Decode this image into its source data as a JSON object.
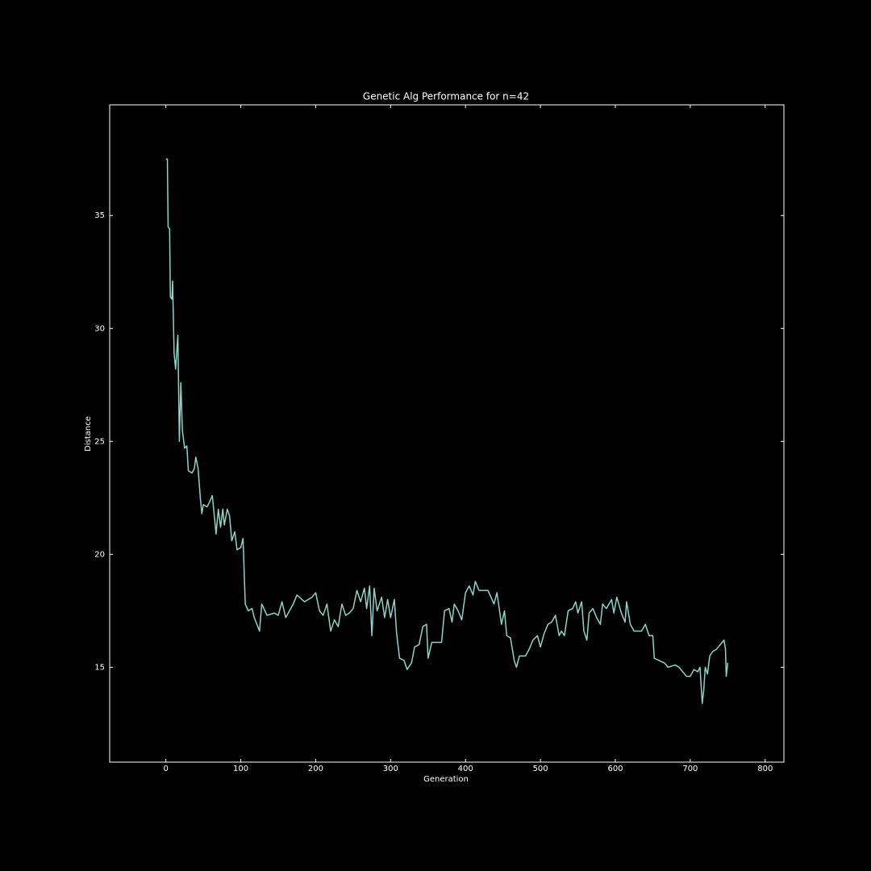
{
  "chart_data": {
    "type": "line",
    "title": "Genetic Alg Performance for n=42",
    "x_label": "Generation",
    "y_label": "Distance",
    "color": "#8dd3c7",
    "x": [
      0,
      2,
      3,
      5,
      6,
      8,
      9,
      11,
      13,
      16,
      18,
      20,
      22,
      25,
      28,
      30,
      35,
      38,
      40,
      43,
      46,
      48,
      50,
      55,
      58,
      62,
      65,
      67,
      70,
      73,
      76,
      78,
      82,
      85,
      88,
      92,
      95,
      100,
      103,
      106,
      110,
      115,
      118,
      125,
      128,
      135,
      145,
      150,
      155,
      160,
      170,
      175,
      185,
      195,
      200,
      205,
      210,
      215,
      220,
      225,
      230,
      235,
      240,
      245,
      250,
      255,
      260,
      265,
      268,
      272,
      275,
      278,
      282,
      288,
      292,
      296,
      300,
      305,
      308,
      312,
      318,
      322,
      328,
      332,
      338,
      343,
      348,
      350,
      355,
      368,
      372,
      378,
      382,
      385,
      390,
      395,
      400,
      405,
      410,
      413,
      418,
      430,
      438,
      442,
      448,
      452,
      455,
      460,
      465,
      468,
      472,
      480,
      485,
      490,
      496,
      500,
      505,
      510,
      515,
      520,
      525,
      528,
      532,
      537,
      543,
      547,
      550,
      555,
      558,
      562,
      565,
      570,
      575,
      580,
      583,
      588,
      595,
      598,
      602,
      608,
      613,
      615,
      620,
      625,
      635,
      640,
      645,
      650,
      652,
      665,
      668,
      670,
      680,
      685,
      690,
      695,
      700,
      705,
      710,
      713,
      716,
      718,
      720,
      723,
      726,
      730,
      735,
      740,
      745,
      747,
      748,
      750
    ],
    "values": [
      37.5,
      37.5,
      34.5,
      34.4,
      31.4,
      31.3,
      32.1,
      28.9,
      28.2,
      29.7,
      25.0,
      27.6,
      25.5,
      24.7,
      24.8,
      23.7,
      23.6,
      23.8,
      24.3,
      23.8,
      22.5,
      21.8,
      22.2,
      22.1,
      22.3,
      22.6,
      21.6,
      20.9,
      22.0,
      21.2,
      22.0,
      21.3,
      22.0,
      21.7,
      20.6,
      21.0,
      20.2,
      20.3,
      20.7,
      17.8,
      17.5,
      17.6,
      17.2,
      16.6,
      17.8,
      17.3,
      17.4,
      17.3,
      17.9,
      17.2,
      17.8,
      18.2,
      17.9,
      18.1,
      18.3,
      17.5,
      17.3,
      17.8,
      16.6,
      17.1,
      16.8,
      17.8,
      17.3,
      17.4,
      17.6,
      18.4,
      17.9,
      18.5,
      17.6,
      18.6,
      16.4,
      18.5,
      17.5,
      18.1,
      17.2,
      18.0,
      17.2,
      18.0,
      16.5,
      15.4,
      15.3,
      14.9,
      15.2,
      15.9,
      16.0,
      16.8,
      16.9,
      15.4,
      16.1,
      16.1,
      17.5,
      17.6,
      17.0,
      17.8,
      17.5,
      17.1,
      18.3,
      18.6,
      18.2,
      18.8,
      18.4,
      18.4,
      17.8,
      18.3,
      16.9,
      17.5,
      16.4,
      16.3,
      15.3,
      15.0,
      15.5,
      15.5,
      15.8,
      16.2,
      16.4,
      15.9,
      16.5,
      16.9,
      17.0,
      17.3,
      16.4,
      16.6,
      16.4,
      17.5,
      17.6,
      17.9,
      17.4,
      17.9,
      16.6,
      16.2,
      17.4,
      17.6,
      17.2,
      16.9,
      17.8,
      17.6,
      18.0,
      17.4,
      18.1,
      17.4,
      17.0,
      17.9,
      16.9,
      16.6,
      16.6,
      16.9,
      16.4,
      16.4,
      15.4,
      15.2,
      15.1,
      15.0,
      15.1,
      15.0,
      14.8,
      14.6,
      14.6,
      14.9,
      14.8,
      15.0,
      13.4,
      14.0,
      15.0,
      14.7,
      15.5,
      15.7,
      15.8,
      16.0,
      16.2,
      15.8,
      14.6,
      15.2
    ],
    "xlim": [
      -75,
      825
    ],
    "ylim": [
      10.8,
      39.9
    ],
    "xticks": [
      0,
      100,
      200,
      300,
      400,
      500,
      600,
      700,
      800
    ],
    "yticks": [
      15,
      20,
      25,
      30,
      35
    ]
  }
}
